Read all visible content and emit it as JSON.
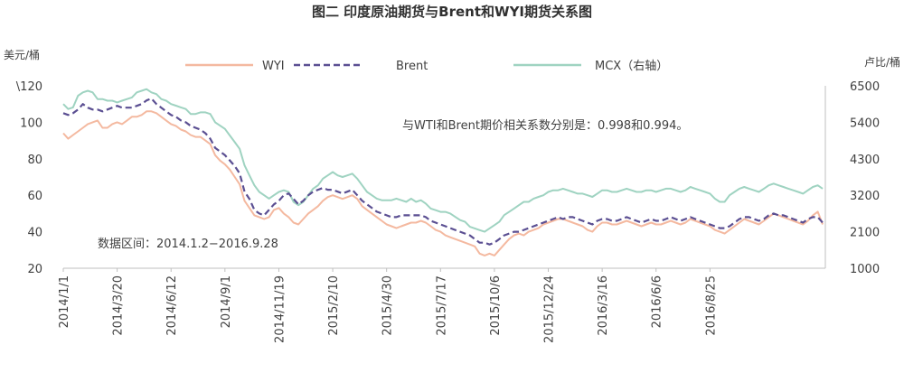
{
  "chart_data": {
    "type": "line",
    "title": "图二 印度原油期货与Brent和WYI期货关系图",
    "y_left": {
      "unit": "美元/桶",
      "ticks": [
        "\\120",
        "100",
        "80",
        "60",
        "40",
        "20"
      ],
      "ylim": [
        20,
        120
      ]
    },
    "y_right": {
      "unit": "卢比/桶",
      "ticks": [
        "6500",
        "5400",
        "4300",
        "3200",
        "2100",
        "1000"
      ],
      "ylim": [
        1000,
        6500
      ]
    },
    "x_ticks": [
      "2014/1/1",
      "2014/3/20",
      "2014/6/12",
      "2014/9/1",
      "2014/11/19",
      "2015/2/10",
      "2015/4/30",
      "2015/7/17",
      "2015/10/6",
      "2015/12/24",
      "2016/3/16",
      "2016/6/6",
      "2016/8/25"
    ],
    "x_tick_pos": [
      0,
      11,
      22,
      33,
      44,
      55,
      66,
      77,
      88,
      99,
      110,
      121,
      132
    ],
    "annotations": {
      "correlation": "与WTI和Brent期价相关系数分别是：0.998和0.994。",
      "date_range": "数据区间：2014.1.2−2016.9.28"
    },
    "series": [
      {
        "name": "WYI",
        "axis": "left",
        "color": "#f4b9a0",
        "dash": "",
        "values": [
          94,
          91,
          93,
          95,
          97,
          99,
          100,
          101,
          97,
          97,
          99,
          100,
          99,
          101,
          103,
          103,
          104,
          106,
          106,
          105,
          103,
          101,
          99,
          98,
          96,
          95,
          93,
          92,
          92,
          90,
          88,
          82,
          79,
          77,
          74,
          70,
          66,
          57,
          53,
          49,
          48,
          47,
          48,
          52,
          53,
          50,
          48,
          45,
          44,
          47,
          50,
          52,
          54,
          57,
          59,
          60,
          59,
          58,
          59,
          60,
          58,
          54,
          52,
          50,
          48,
          46,
          44,
          43,
          42,
          43,
          44,
          45,
          45,
          46,
          45,
          43,
          41,
          40,
          38,
          37,
          36,
          35,
          34,
          33,
          32,
          28,
          27,
          28,
          27,
          30,
          33,
          36,
          38,
          39,
          38,
          40,
          41,
          42,
          44,
          45,
          46,
          47,
          47,
          46,
          45,
          44,
          43,
          41,
          40,
          43,
          45,
          45,
          44,
          44,
          45,
          46,
          45,
          44,
          43,
          44,
          45,
          44,
          44,
          45,
          46,
          45,
          44,
          45,
          47,
          46,
          45,
          44,
          43,
          41,
          40,
          39,
          41,
          43,
          45,
          47,
          46,
          45,
          44,
          46,
          48,
          50,
          49,
          48,
          47,
          46,
          45,
          44,
          46,
          49,
          51,
          44
        ]
      },
      {
        "name": "Brent",
        "axis": "left",
        "color": "#5b4f92",
        "dash": "7,4",
        "values": [
          105,
          104,
          105,
          107,
          110,
          108,
          107,
          107,
          106,
          107,
          108,
          109,
          108,
          108,
          108,
          109,
          110,
          112,
          113,
          110,
          108,
          106,
          104,
          103,
          101,
          100,
          98,
          97,
          96,
          94,
          91,
          86,
          84,
          82,
          79,
          76,
          72,
          62,
          58,
          52,
          50,
          49,
          52,
          55,
          57,
          60,
          61,
          58,
          55,
          57,
          60,
          62,
          63,
          64,
          63,
          63,
          62,
          61,
          62,
          63,
          60,
          57,
          55,
          53,
          51,
          50,
          49,
          48,
          48,
          49,
          49,
          49,
          49,
          49,
          48,
          46,
          45,
          44,
          43,
          42,
          41,
          40,
          39,
          38,
          36,
          34,
          34,
          33,
          34,
          36,
          38,
          39,
          40,
          40,
          41,
          42,
          43,
          44,
          45,
          46,
          47,
          48,
          47,
          48,
          48,
          47,
          46,
          45,
          44,
          46,
          47,
          47,
          46,
          46,
          47,
          48,
          47,
          46,
          45,
          46,
          47,
          46,
          46,
          47,
          48,
          47,
          46,
          47,
          48,
          47,
          46,
          45,
          44,
          43,
          42,
          42,
          43,
          45,
          47,
          48,
          48,
          47,
          46,
          47,
          49,
          50,
          49,
          49,
          48,
          47,
          46,
          45,
          47,
          48,
          48,
          45
        ]
      },
      {
        "name": "MCX（右轴）",
        "axis": "right",
        "color": "#9fd3c1",
        "dash": "",
        "values": [
          5950,
          5800,
          5850,
          6200,
          6300,
          6350,
          6300,
          6100,
          6100,
          6050,
          6050,
          6000,
          6050,
          6100,
          6150,
          6300,
          6350,
          6400,
          6300,
          6250,
          6100,
          6050,
          5950,
          5900,
          5850,
          5800,
          5650,
          5650,
          5700,
          5700,
          5650,
          5400,
          5300,
          5200,
          5000,
          4800,
          4600,
          4100,
          3800,
          3500,
          3300,
          3200,
          3100,
          3200,
          3300,
          3350,
          3300,
          3000,
          2900,
          3000,
          3200,
          3400,
          3500,
          3700,
          3800,
          3900,
          3800,
          3750,
          3800,
          3850,
          3700,
          3500,
          3300,
          3200,
          3100,
          3050,
          3050,
          3050,
          3100,
          3050,
          3000,
          3100,
          3000,
          3050,
          2950,
          2800,
          2750,
          2700,
          2700,
          2650,
          2550,
          2450,
          2400,
          2250,
          2200,
          2150,
          2100,
          2200,
          2300,
          2400,
          2600,
          2700,
          2800,
          2900,
          3000,
          3000,
          3100,
          3150,
          3200,
          3300,
          3350,
          3350,
          3400,
          3350,
          3300,
          3250,
          3250,
          3200,
          3150,
          3250,
          3350,
          3350,
          3300,
          3300,
          3350,
          3400,
          3350,
          3300,
          3300,
          3350,
          3350,
          3300,
          3350,
          3400,
          3400,
          3350,
          3300,
          3350,
          3450,
          3400,
          3350,
          3300,
          3250,
          3100,
          3000,
          3000,
          3200,
          3300,
          3400,
          3450,
          3400,
          3350,
          3300,
          3400,
          3500,
          3550,
          3500,
          3450,
          3400,
          3350,
          3300,
          3250,
          3350,
          3450,
          3500,
          3400
        ]
      }
    ]
  }
}
